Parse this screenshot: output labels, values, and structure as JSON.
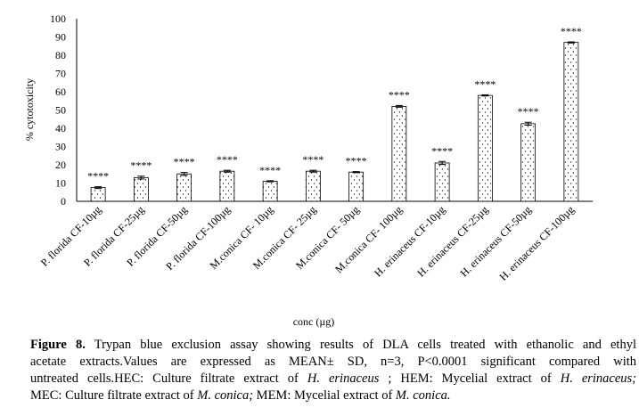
{
  "chart_data": {
    "type": "bar",
    "categories": [
      "P. florida CF-10µg",
      "P. florida CF-25µg",
      "P. florida CF-50µg",
      "P. florida CF-100µg",
      "M.conica CF- 10µg",
      "M.conica CF- 25µg",
      "M.conica CF- 50µg",
      "M.conica CF- 100µg",
      "H. erinaceus CF-10µg",
      "H. erinaceus CF-25µg",
      "H. erinaceus CF-50µg",
      "H. erinaceus CF-100µg"
    ],
    "values": [
      7.5,
      13,
      15,
      16.5,
      11,
      16.5,
      16,
      52,
      21,
      58,
      42.5,
      87
    ],
    "errors": [
      0.5,
      0.8,
      0.8,
      0.5,
      0.3,
      0.5,
      0.3,
      0.5,
      0.8,
      0.3,
      0.8,
      0.3
    ],
    "significance": [
      "****",
      "****",
      "****",
      "****",
      "****",
      "****",
      "****",
      "****",
      "****",
      "****",
      "****",
      "****"
    ],
    "ylim": [
      0,
      100
    ],
    "yticks": [
      0,
      10,
      20,
      30,
      40,
      50,
      60,
      70,
      80,
      90,
      100
    ],
    "y_label": "% cytotoxicity",
    "x_label": "conc (µg)",
    "grid": false
  },
  "caption": {
    "lines": [
      [
        {
          "text": "Figure 8.",
          "style": "bold"
        },
        {
          "text": " Trypan blue exclusion assay showing results of DLA cells treated with ethanolic and ethyl",
          "style": "normal"
        }
      ],
      [
        {
          "text": "acetate extracts.Values are expressed as MEAN± SD, n=3, P<0.0001 significant compared with",
          "style": "normal"
        }
      ],
      [
        {
          "text": "untreated cells.HEC: Culture filtrate extract of ",
          "style": "normal"
        },
        {
          "text": "H. erinaceus",
          "style": "italic"
        },
        {
          "text": " ; HEM: Mycelial extract of ",
          "style": "normal"
        },
        {
          "text": "H. erinaceus;",
          "style": "italic"
        }
      ],
      [
        {
          "text": "MEC: Culture filtrate extract of ",
          "style": "normal"
        },
        {
          "text": "M. conica;",
          "style": "italic"
        },
        {
          "text": " MEM: Mycelial extract of ",
          "style": "normal"
        },
        {
          "text": "M. conica.",
          "style": "italic"
        }
      ]
    ]
  }
}
